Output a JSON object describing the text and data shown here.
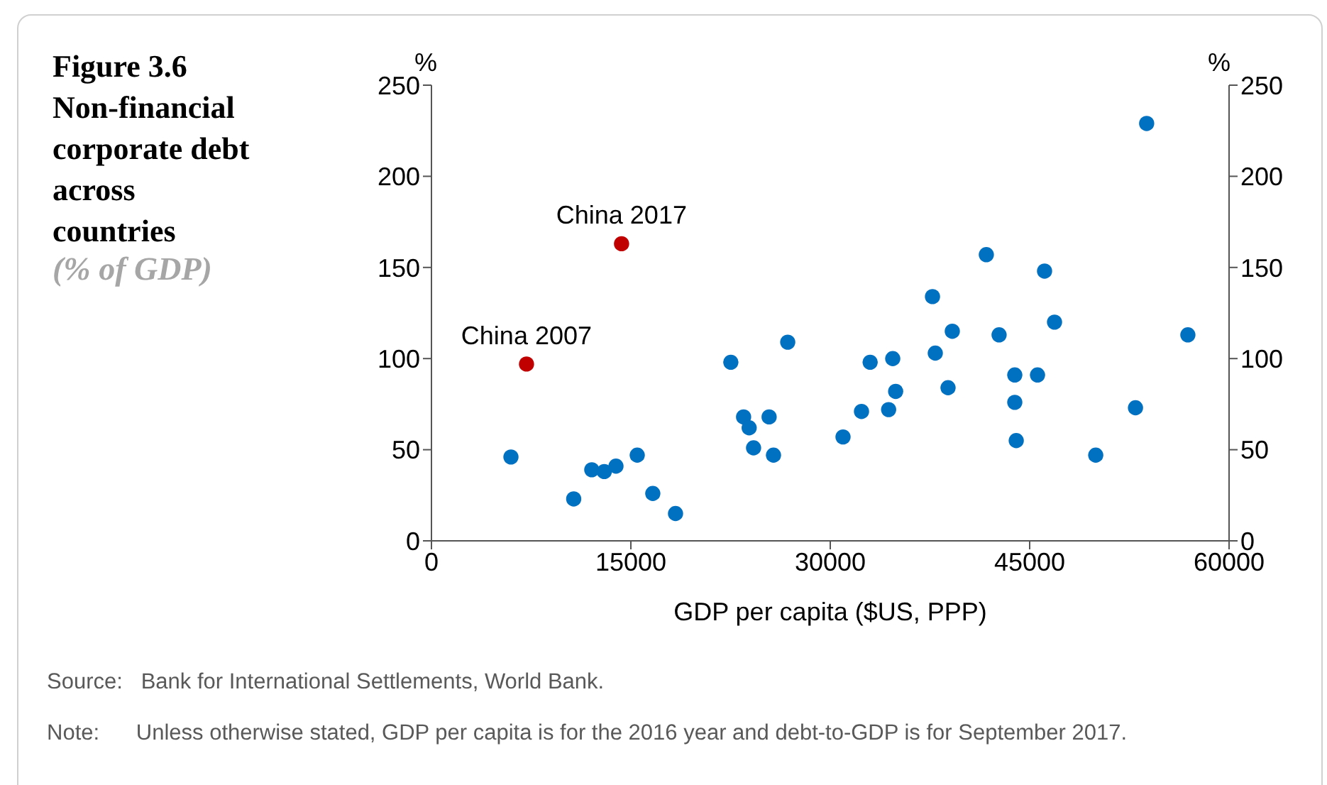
{
  "chart_data": {
    "type": "scatter",
    "title": "Figure 3.6 Non-financial corporate debt across countries",
    "subtitle": "(% of GDP)",
    "xlabel": "GDP per capita ($US, PPP)",
    "ylabel": "%",
    "y2label": "%",
    "series": [
      {
        "color": "#0070c0",
        "x": [
          5980,
          10700,
          12060,
          13000,
          13880,
          15480,
          16650,
          18360,
          22520,
          23480,
          23900,
          24230,
          25400,
          25730,
          26800,
          30960,
          32350,
          33000,
          34390,
          34700,
          34920,
          37690,
          37900,
          38860,
          39180,
          41740,
          42700,
          43880,
          43880,
          43990,
          45590,
          46120,
          46870,
          49970,
          52960,
          53800,
          56900
        ],
        "values": [
          46,
          23,
          39,
          38,
          41,
          47,
          26,
          15,
          98,
          68,
          62,
          51,
          68,
          47,
          109,
          57,
          71,
          98,
          72,
          100,
          82,
          134,
          103,
          84,
          115,
          157,
          113,
          91,
          76,
          55,
          91,
          148,
          120,
          47,
          73,
          229,
          113
        ]
      },
      {
        "color": "#c00000",
        "x": [
          7150,
          14300
        ],
        "values": [
          97,
          163
        ]
      }
    ],
    "annotations": [
      {
        "text": "China 2007",
        "x": 7150,
        "y": 97
      },
      {
        "text": "China 2017",
        "x": 14300,
        "y": 163
      },
      "Source:   Bank for International Settlements, World Bank.",
      "Note:      Unless otherwise stated, GDP per capita is for the 2016 year and debt-to-GDP is for September 2017."
    ],
    "xlim": [
      0,
      60000
    ],
    "xticks": [
      0,
      15000,
      30000,
      45000,
      60000
    ],
    "ylim": [
      0,
      250
    ],
    "yticks": [
      0,
      50,
      100,
      150,
      200,
      250
    ],
    "y2lim": [
      0,
      250
    ],
    "y2ticks": [
      0,
      50,
      100,
      150,
      200,
      250
    ],
    "grid": false,
    "legend": false,
    "marker": "circle"
  }
}
